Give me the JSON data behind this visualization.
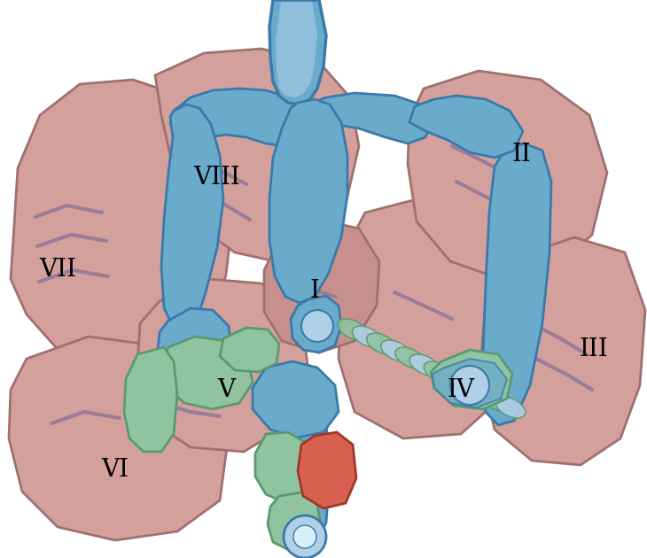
{
  "bg": "#ffffff",
  "seg_fill": "#c8908c",
  "seg_fill2": "#d4a09c",
  "seg_edge": "#a07070",
  "blue": "#6aabcc",
  "blue_dk": "#3a7aaa",
  "blue_lt": "#b0d0e8",
  "green": "#90c4a0",
  "green_dk": "#5a9a70",
  "red": "#d86050",
  "red_dk": "#a03828",
  "purple": "#907898",
  "figsize": [
    7.3,
    6.3
  ],
  "dpi": 100,
  "labels": [
    [
      "I",
      355,
      328
    ],
    [
      "II",
      588,
      175
    ],
    [
      "III",
      670,
      395
    ],
    [
      "IV",
      520,
      440
    ],
    [
      "V",
      255,
      440
    ],
    [
      "VI",
      130,
      530
    ],
    [
      "VII",
      65,
      305
    ],
    [
      "VIII",
      245,
      200
    ]
  ]
}
